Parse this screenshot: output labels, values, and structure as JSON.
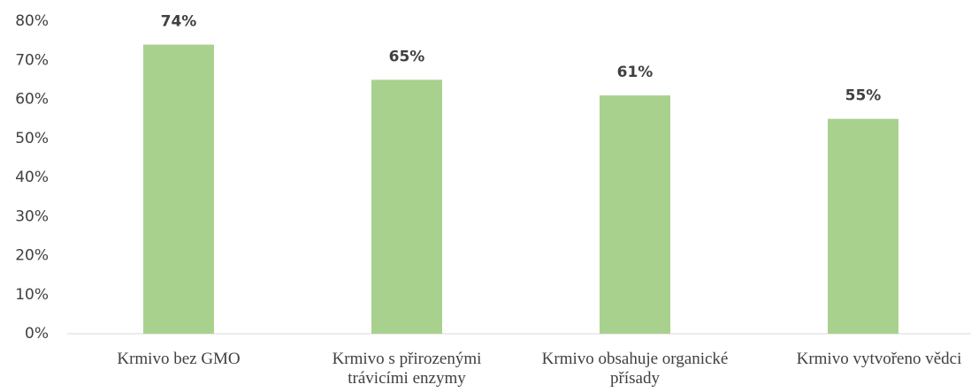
{
  "chart_data": {
    "type": "bar",
    "categories": [
      "Krmivo bez GMO",
      "Krmivo s přirozenými trávicími enzymy",
      "Krmivo obsahuje organické přísady",
      "Krmivo vytvořeno vědci"
    ],
    "values": [
      74,
      65,
      61,
      55
    ],
    "value_labels": [
      "74%",
      "65%",
      "61%",
      "55%"
    ],
    "color": "#a9d18e",
    "ylim": [
      0,
      80
    ],
    "yticks": [
      {
        "value": 0,
        "label": "0%"
      },
      {
        "value": 10,
        "label": "10%"
      },
      {
        "value": 20,
        "label": "20%"
      },
      {
        "value": 30,
        "label": "30%"
      },
      {
        "value": 40,
        "label": "40%"
      },
      {
        "value": 50,
        "label": "50%"
      },
      {
        "value": 60,
        "label": "60%"
      },
      {
        "value": 70,
        "label": "70%"
      },
      {
        "value": 80,
        "label": "80%"
      }
    ],
    "grid": false
  }
}
